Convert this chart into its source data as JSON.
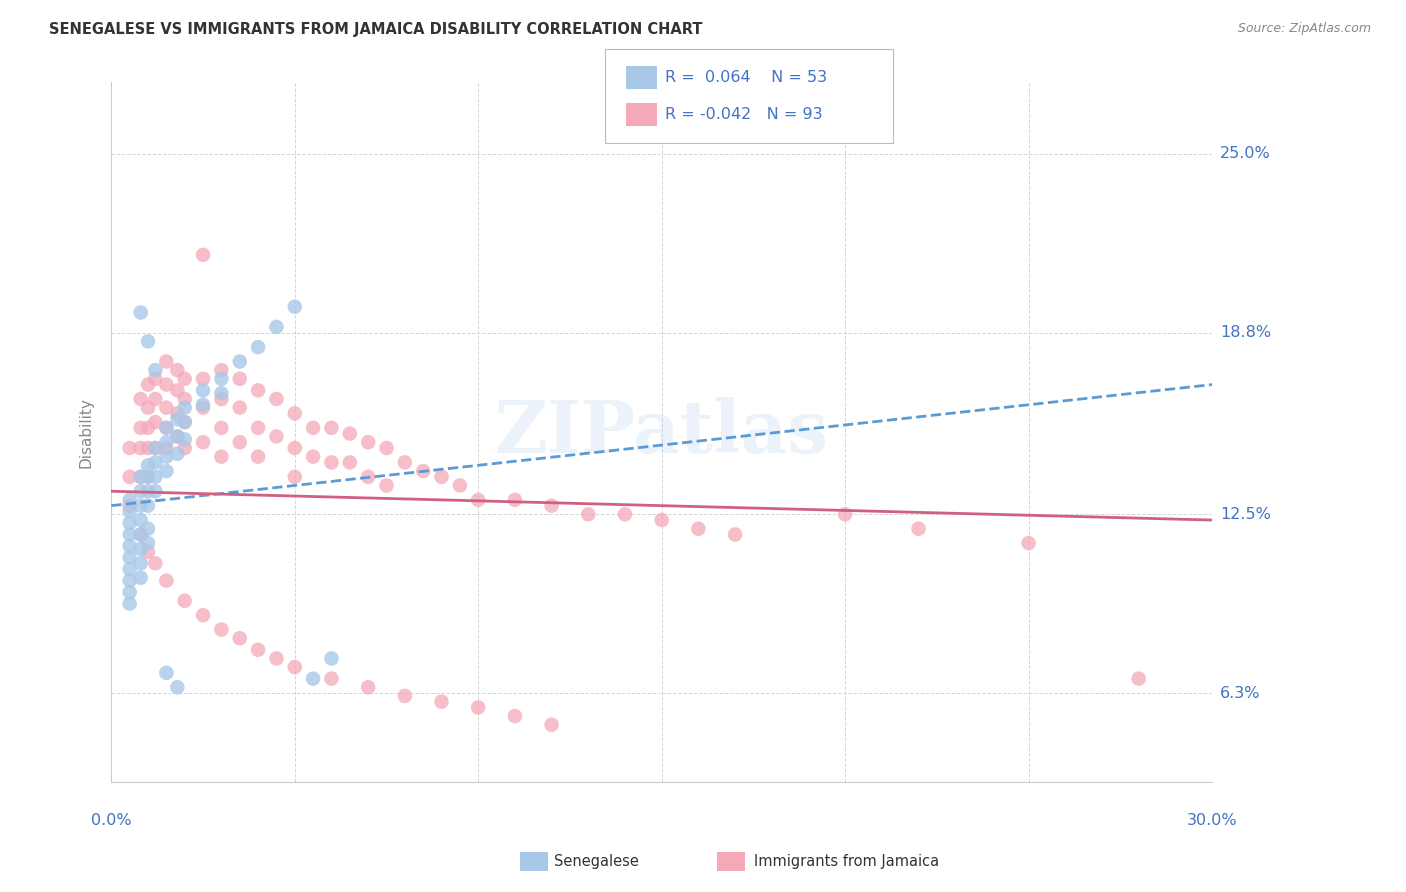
{
  "title": "SENEGALESE VS IMMIGRANTS FROM JAMAICA DISABILITY CORRELATION CHART",
  "source": "Source: ZipAtlas.com",
  "ylabel": "Disability",
  "ytick_labels": [
    "25.0%",
    "18.8%",
    "12.5%",
    "6.3%"
  ],
  "ytick_values": [
    0.25,
    0.188,
    0.125,
    0.063
  ],
  "xlim": [
    0.0,
    0.3
  ],
  "ylim": [
    0.032,
    0.275
  ],
  "legend_label1": "Senegalese",
  "legend_label2": "Immigrants from Jamaica",
  "R1": "0.064",
  "N1": "53",
  "R2": "-0.042",
  "N2": "93",
  "color_blue": "#a8c8e8",
  "color_pink": "#f4a8b8",
  "color_blue_line": "#5b9bd5",
  "color_pink_line": "#d06080",
  "color_text_blue": "#4472c4",
  "background": "#ffffff",
  "grid_color": "#cccccc",
  "watermark": "ZIPatlas",
  "blue_scatter_x": [
    0.005,
    0.005,
    0.005,
    0.005,
    0.005,
    0.005,
    0.005,
    0.005,
    0.005,
    0.005,
    0.008,
    0.008,
    0.008,
    0.008,
    0.008,
    0.008,
    0.008,
    0.008,
    0.01,
    0.01,
    0.01,
    0.01,
    0.01,
    0.01,
    0.012,
    0.012,
    0.012,
    0.012,
    0.015,
    0.015,
    0.015,
    0.015,
    0.018,
    0.018,
    0.018,
    0.02,
    0.02,
    0.02,
    0.025,
    0.025,
    0.03,
    0.03,
    0.035,
    0.04,
    0.045,
    0.05,
    0.055,
    0.06,
    0.008,
    0.01,
    0.012,
    0.015,
    0.018
  ],
  "blue_scatter_y": [
    0.13,
    0.126,
    0.122,
    0.118,
    0.114,
    0.11,
    0.106,
    0.102,
    0.098,
    0.094,
    0.138,
    0.133,
    0.128,
    0.123,
    0.118,
    0.113,
    0.108,
    0.103,
    0.142,
    0.138,
    0.133,
    0.128,
    0.12,
    0.115,
    0.148,
    0.143,
    0.138,
    0.133,
    0.155,
    0.15,
    0.145,
    0.14,
    0.158,
    0.152,
    0.146,
    0.162,
    0.157,
    0.151,
    0.168,
    0.163,
    0.172,
    0.167,
    0.178,
    0.183,
    0.19,
    0.197,
    0.068,
    0.075,
    0.195,
    0.185,
    0.175,
    0.07,
    0.065
  ],
  "pink_scatter_x": [
    0.005,
    0.005,
    0.005,
    0.008,
    0.008,
    0.008,
    0.008,
    0.01,
    0.01,
    0.01,
    0.01,
    0.01,
    0.012,
    0.012,
    0.012,
    0.012,
    0.015,
    0.015,
    0.015,
    0.015,
    0.015,
    0.018,
    0.018,
    0.018,
    0.018,
    0.02,
    0.02,
    0.02,
    0.02,
    0.025,
    0.025,
    0.025,
    0.025,
    0.03,
    0.03,
    0.03,
    0.03,
    0.035,
    0.035,
    0.035,
    0.04,
    0.04,
    0.04,
    0.045,
    0.045,
    0.05,
    0.05,
    0.05,
    0.055,
    0.055,
    0.06,
    0.06,
    0.065,
    0.065,
    0.07,
    0.07,
    0.075,
    0.075,
    0.08,
    0.085,
    0.09,
    0.095,
    0.1,
    0.11,
    0.12,
    0.13,
    0.14,
    0.15,
    0.16,
    0.17,
    0.2,
    0.22,
    0.25,
    0.28,
    0.008,
    0.01,
    0.012,
    0.015,
    0.02,
    0.025,
    0.03,
    0.035,
    0.04,
    0.045,
    0.05,
    0.06,
    0.07,
    0.08,
    0.09,
    0.1,
    0.11,
    0.12
  ],
  "pink_scatter_y": [
    0.148,
    0.138,
    0.128,
    0.165,
    0.155,
    0.148,
    0.138,
    0.17,
    0.162,
    0.155,
    0.148,
    0.138,
    0.172,
    0.165,
    0.157,
    0.148,
    0.178,
    0.17,
    0.162,
    0.155,
    0.148,
    0.175,
    0.168,
    0.16,
    0.152,
    0.172,
    0.165,
    0.157,
    0.148,
    0.215,
    0.172,
    0.162,
    0.15,
    0.175,
    0.165,
    0.155,
    0.145,
    0.172,
    0.162,
    0.15,
    0.168,
    0.155,
    0.145,
    0.165,
    0.152,
    0.16,
    0.148,
    0.138,
    0.155,
    0.145,
    0.155,
    0.143,
    0.153,
    0.143,
    0.15,
    0.138,
    0.148,
    0.135,
    0.143,
    0.14,
    0.138,
    0.135,
    0.13,
    0.13,
    0.128,
    0.125,
    0.125,
    0.123,
    0.12,
    0.118,
    0.125,
    0.12,
    0.115,
    0.068,
    0.118,
    0.112,
    0.108,
    0.102,
    0.095,
    0.09,
    0.085,
    0.082,
    0.078,
    0.075,
    0.072,
    0.068,
    0.065,
    0.062,
    0.06,
    0.058,
    0.055,
    0.052
  ],
  "blue_line_x": [
    0.0,
    0.3
  ],
  "blue_line_y": [
    0.128,
    0.17
  ],
  "pink_line_x": [
    0.0,
    0.3
  ],
  "pink_line_y": [
    0.133,
    0.123
  ]
}
